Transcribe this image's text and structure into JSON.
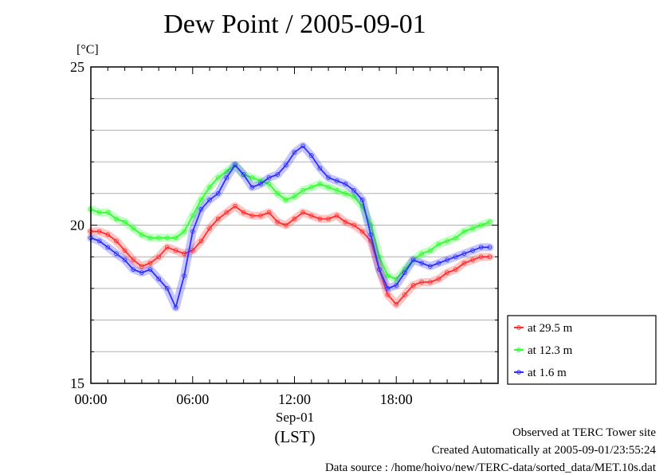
{
  "title": "Dew Point / 2005-09-01",
  "y_unit": "[°C]",
  "x_date_label": "Sep-01",
  "x_zone_label": "(LST)",
  "footer": {
    "line1": "Observed at TERC Tower site",
    "line2": "Created Automatically at 2005-09-01/23:55:24",
    "line3": "Data source : /home/hoivo/new/TERC-data/sorted_data/MET.10s.dat"
  },
  "colors": {
    "red": "#ff3030",
    "green": "#30ff30",
    "blue": "#3030ff"
  },
  "chart_data": {
    "type": "line",
    "title": "Dew Point / 2005-09-01",
    "xlabel": "(LST)",
    "ylabel": "[°C]",
    "x_ticks": [
      "00:00",
      "06:00",
      "12:00",
      "18:00"
    ],
    "y_ticks": [
      15,
      20,
      25
    ],
    "xlim": [
      0,
      23.5
    ],
    "ylim": [
      15,
      25
    ],
    "grid": true,
    "legend_placement": "right-bottom",
    "x": [
      0,
      0.5,
      1,
      1.5,
      2,
      2.5,
      3,
      3.5,
      4,
      4.5,
      5,
      5.5,
      6,
      6.5,
      7,
      7.5,
      8,
      8.5,
      9,
      9.5,
      10,
      10.5,
      11,
      11.5,
      12,
      12.5,
      13,
      13.5,
      14,
      14.5,
      15,
      15.5,
      16,
      16.5,
      17,
      17.5,
      18,
      18.5,
      19,
      19.5,
      20,
      20.5,
      21,
      21.5,
      22,
      22.5,
      23,
      23.5
    ],
    "series": [
      {
        "name": "at 29.5 m",
        "color": "#ff3030",
        "values": [
          19.8,
          19.8,
          19.7,
          19.5,
          19.2,
          18.9,
          18.7,
          18.8,
          19.0,
          19.3,
          19.2,
          19.1,
          19.2,
          19.5,
          19.9,
          20.2,
          20.4,
          20.6,
          20.4,
          20.3,
          20.3,
          20.4,
          20.1,
          20.0,
          20.2,
          20.4,
          20.3,
          20.2,
          20.2,
          20.3,
          20.1,
          20.0,
          19.8,
          19.5,
          18.6,
          17.8,
          17.5,
          17.8,
          18.1,
          18.2,
          18.2,
          18.3,
          18.5,
          18.6,
          18.8,
          18.9,
          19.0,
          19.0
        ]
      },
      {
        "name": "at 12.3 m",
        "color": "#30ff30",
        "values": [
          20.5,
          20.4,
          20.4,
          20.2,
          20.1,
          19.9,
          19.7,
          19.6,
          19.6,
          19.6,
          19.6,
          19.8,
          20.3,
          20.8,
          21.2,
          21.5,
          21.7,
          21.9,
          21.6,
          21.5,
          21.4,
          21.3,
          21.0,
          20.8,
          20.9,
          21.1,
          21.2,
          21.3,
          21.2,
          21.1,
          21.0,
          20.9,
          20.6,
          20.0,
          19.0,
          18.4,
          18.3,
          18.6,
          18.9,
          19.1,
          19.2,
          19.4,
          19.5,
          19.6,
          19.8,
          19.9,
          20.0,
          20.1
        ]
      },
      {
        "name": "at 1.6 m",
        "color": "#3030ff",
        "values": [
          19.6,
          19.5,
          19.3,
          19.1,
          18.9,
          18.6,
          18.5,
          18.6,
          18.3,
          18.0,
          17.4,
          18.4,
          19.8,
          20.5,
          20.8,
          21.0,
          21.5,
          21.9,
          21.6,
          21.2,
          21.3,
          21.5,
          21.6,
          21.9,
          22.3,
          22.5,
          22.2,
          21.8,
          21.5,
          21.4,
          21.3,
          21.1,
          20.8,
          19.7,
          18.6,
          18.0,
          18.1,
          18.5,
          18.9,
          18.8,
          18.7,
          18.8,
          18.9,
          19.0,
          19.1,
          19.2,
          19.3,
          19.3
        ]
      }
    ]
  }
}
